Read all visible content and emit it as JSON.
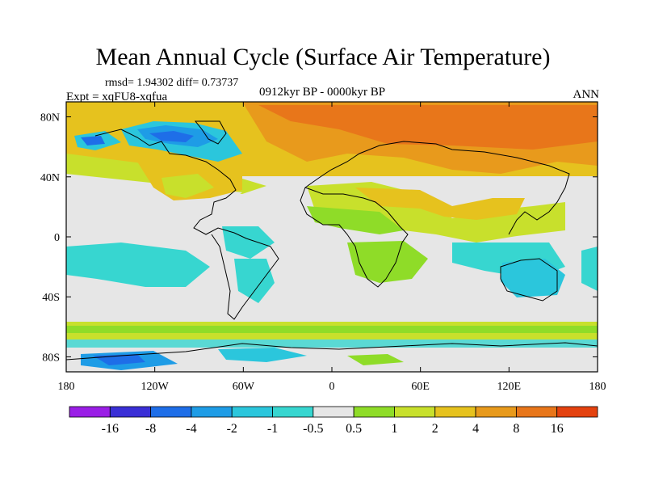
{
  "title": "Mean Annual Cycle (Surface Air Temperature)",
  "stats": "rmsd= 1.94302 diff= 0.73737",
  "experiment": "Expt = xqFU8-xqfua",
  "period": "0912kyr BP - 0000kyr BP",
  "season": "ANN",
  "axes": {
    "lon_ticks": [
      {
        "value": -180,
        "label": "180"
      },
      {
        "value": -120,
        "label": "120W"
      },
      {
        "value": -60,
        "label": "60W"
      },
      {
        "value": 0,
        "label": "0"
      },
      {
        "value": 60,
        "label": "60E"
      },
      {
        "value": 120,
        "label": "120E"
      },
      {
        "value": 180,
        "label": "180"
      }
    ],
    "lat_ticks": [
      {
        "value": 80,
        "label": "80N"
      },
      {
        "value": 40,
        "label": "40N"
      },
      {
        "value": 0,
        "label": "0"
      },
      {
        "value": -40,
        "label": "40S"
      },
      {
        "value": -80,
        "label": "80S"
      }
    ],
    "lon_range": [
      -180,
      180
    ],
    "lat_range": [
      -90,
      90
    ]
  },
  "colorbar": {
    "colors": [
      "#9a1ee6",
      "#3a2fd6",
      "#1e6ee8",
      "#1e9ce6",
      "#2bc6dc",
      "#37d6d0",
      "#e6e6e6",
      "#8fdc28",
      "#c8e02c",
      "#e6c21e",
      "#e89a1c",
      "#e8761a",
      "#e4420f"
    ],
    "labels": [
      "-16",
      "-8",
      "-4",
      "-2",
      "-1",
      "-0.5",
      "0.5",
      "1",
      "2",
      "4",
      "8",
      "16"
    ]
  },
  "map": {
    "background": "#e6e6e6",
    "regions": [
      {
        "name": "Arctic and northern Eurasia warming",
        "value": 8
      },
      {
        "name": "Northern Canada and Greenland cooling",
        "value": -4
      },
      {
        "name": "Tropical oceans",
        "value": -0.5
      },
      {
        "name": "Australia",
        "value": -1
      },
      {
        "name": "Southern Ocean band",
        "value": 1
      },
      {
        "name": "Antarctica",
        "value": -0.5
      }
    ]
  }
}
